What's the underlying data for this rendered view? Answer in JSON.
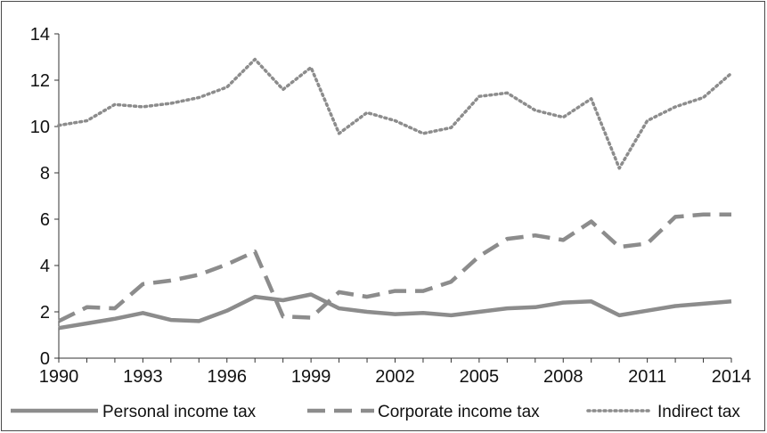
{
  "chart_data": {
    "type": "line",
    "x": [
      1990,
      1991,
      1992,
      1993,
      1994,
      1995,
      1996,
      1997,
      1998,
      1999,
      2000,
      2001,
      2002,
      2003,
      2004,
      2005,
      2006,
      2007,
      2008,
      2009,
      2010,
      2011,
      2012,
      2013,
      2014
    ],
    "x_ticks": [
      "1990",
      "1993",
      "1996",
      "1999",
      "2002",
      "2005",
      "2008",
      "2011",
      "2014"
    ],
    "y_ticks": [
      "0",
      "2",
      "4",
      "6",
      "8",
      "10",
      "12",
      "14"
    ],
    "ylim": [
      0,
      14
    ],
    "xlim": [
      1990,
      2014
    ],
    "grid": false,
    "legend_position": "bottom",
    "series": [
      {
        "name": "Personal income tax",
        "style": "solid",
        "color": "#8c8c8c",
        "values": [
          1.3,
          1.5,
          1.7,
          1.95,
          1.65,
          1.6,
          2.05,
          2.65,
          2.5,
          2.75,
          2.15,
          2.0,
          1.9,
          1.95,
          1.85,
          2.0,
          2.15,
          2.2,
          2.4,
          2.45,
          1.85,
          2.05,
          2.25,
          2.35,
          2.45
        ]
      },
      {
        "name": "Corporate income tax",
        "style": "dashed",
        "color": "#8c8c8c",
        "values": [
          1.6,
          2.2,
          2.15,
          3.2,
          3.35,
          3.6,
          4.05,
          4.6,
          1.8,
          1.75,
          2.85,
          2.65,
          2.9,
          2.9,
          3.3,
          4.4,
          5.15,
          5.3,
          5.1,
          5.9,
          4.8,
          4.95,
          6.1,
          6.2,
          6.2
        ]
      },
      {
        "name": "Indirect tax",
        "style": "dotted",
        "color": "#8c8c8c",
        "values": [
          10.05,
          10.25,
          10.95,
          10.85,
          11.0,
          11.25,
          11.7,
          12.9,
          11.6,
          12.55,
          9.7,
          10.6,
          10.25,
          9.7,
          9.95,
          11.3,
          11.45,
          10.7,
          10.4,
          11.2,
          8.2,
          10.25,
          10.85,
          11.25,
          12.3
        ]
      }
    ]
  }
}
